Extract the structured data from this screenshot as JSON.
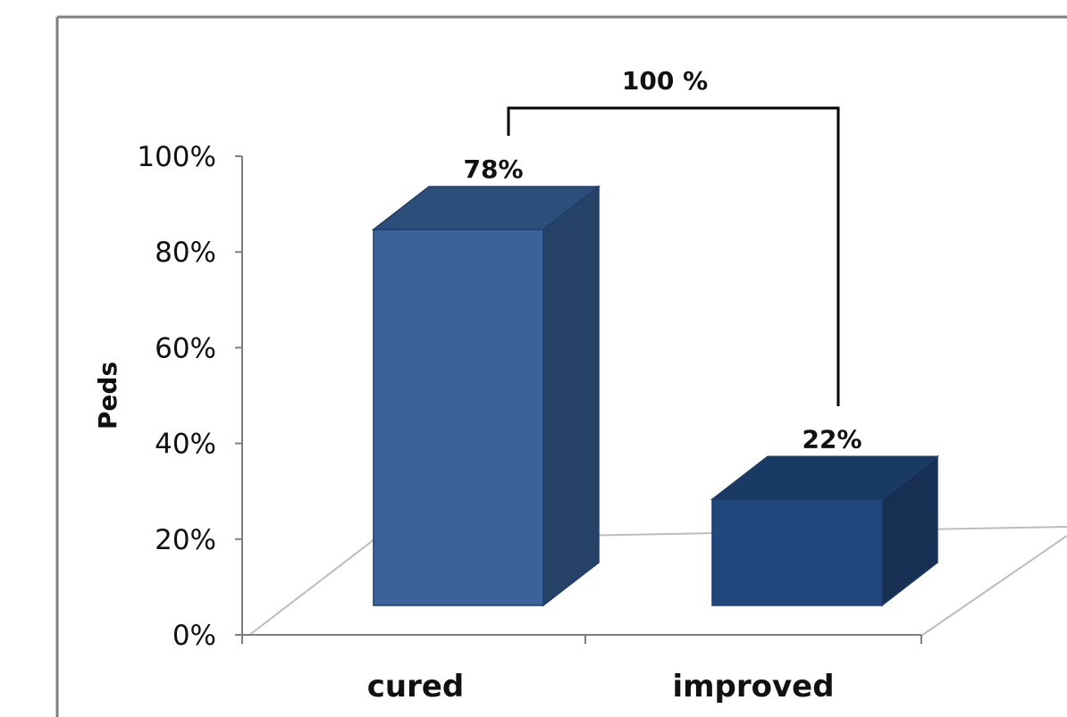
{
  "chart_data": {
    "type": "bar",
    "style": "3d-column",
    "categories": [
      "cured",
      "improved"
    ],
    "series": [
      {
        "values": [
          78,
          22
        ]
      }
    ],
    "data_labels": [
      "78%",
      "22%"
    ],
    "ylabel": "Peds",
    "ylim": [
      0,
      100
    ],
    "ytick_labels": [
      "0%",
      "20%",
      "40%",
      "60%",
      "80%",
      "100%"
    ],
    "yticks": [
      0,
      20,
      40,
      60,
      80,
      100
    ],
    "grid": false,
    "legend": "none",
    "annotation": {
      "type": "bracket",
      "spans": [
        "cured",
        "improved"
      ],
      "label": "100 %"
    },
    "colors": {
      "bar_front": [
        "#3B6399",
        "#21477C"
      ],
      "bar_top": [
        "#2C4E7A",
        "#193A63"
      ],
      "bar_side": [
        "#264267",
        "#162F52"
      ],
      "bar_edge": "#1E3C6E",
      "floor_line": "#BDBDBD",
      "axis": "#7F7F7F",
      "frame": "#7F7F7F",
      "bracket": "#000000"
    }
  }
}
